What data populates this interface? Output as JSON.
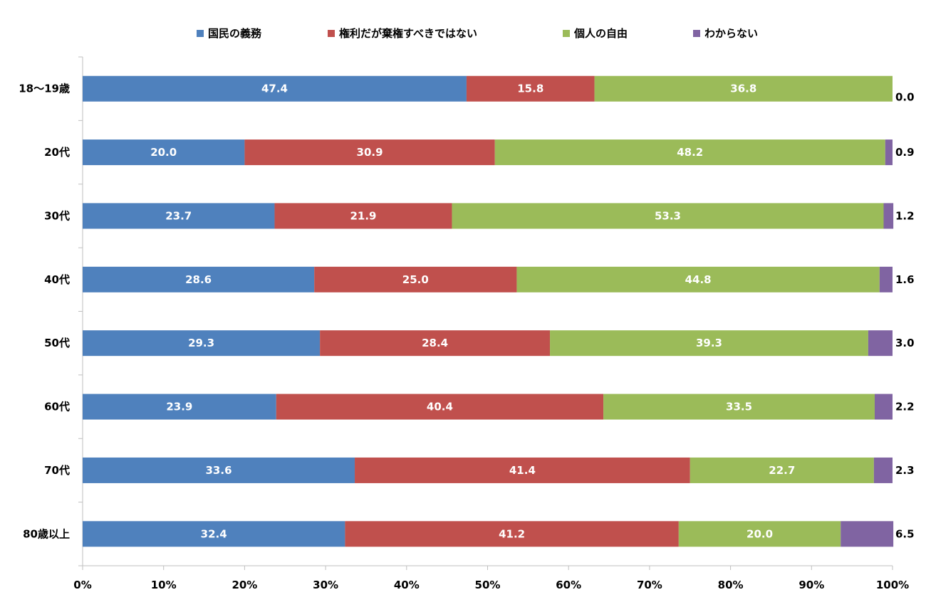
{
  "chart_data": {
    "type": "bar",
    "orientation": "horizontal",
    "stacked": true,
    "percent_stacked": true,
    "title": "",
    "xlabel": "",
    "ylabel": "",
    "xlim": [
      0,
      100
    ],
    "x_ticks": [
      "0%",
      "10%",
      "20%",
      "30%",
      "40%",
      "50%",
      "60%",
      "70%",
      "80%",
      "90%",
      "100%"
    ],
    "grid": false,
    "legend_position": "top",
    "categories": [
      "18～19歳",
      "20代",
      "30代",
      "40代",
      "50代",
      "60代",
      "70代",
      "80歳以上"
    ],
    "series": [
      {
        "name": "国民の義務",
        "color": "#4F81BD",
        "values": [
          47.4,
          20.0,
          23.7,
          28.6,
          29.3,
          23.9,
          33.6,
          32.4
        ],
        "labels": [
          "47.4",
          "20.0",
          "23.7",
          "28.6",
          "29.3",
          "23.9",
          "33.6",
          "32.4"
        ]
      },
      {
        "name": "権利だが棄権すべきではない",
        "color": "#C0504D",
        "values": [
          15.8,
          30.9,
          21.9,
          25.0,
          28.4,
          40.4,
          41.4,
          41.2
        ],
        "labels": [
          "15.8",
          "30.9",
          "21.9",
          "25.0",
          "28.4",
          "40.4",
          "41.4",
          "41.2"
        ]
      },
      {
        "name": "個人の自由",
        "color": "#9BBB59",
        "values": [
          36.8,
          48.2,
          53.3,
          44.8,
          39.3,
          33.5,
          22.7,
          20.0
        ],
        "labels": [
          "36.8",
          "48.2",
          "53.3",
          "44.8",
          "39.3",
          "33.5",
          "22.7",
          "20.0"
        ]
      },
      {
        "name": "わからない",
        "color": "#8064A2",
        "values": [
          0.0,
          0.9,
          1.2,
          1.6,
          3.0,
          2.2,
          2.3,
          6.5
        ],
        "labels": [
          "0.0",
          "0.9",
          "1.2",
          "1.6",
          "3.0",
          "2.2",
          "2.3",
          "6.5"
        ],
        "label_outside": true
      }
    ]
  }
}
